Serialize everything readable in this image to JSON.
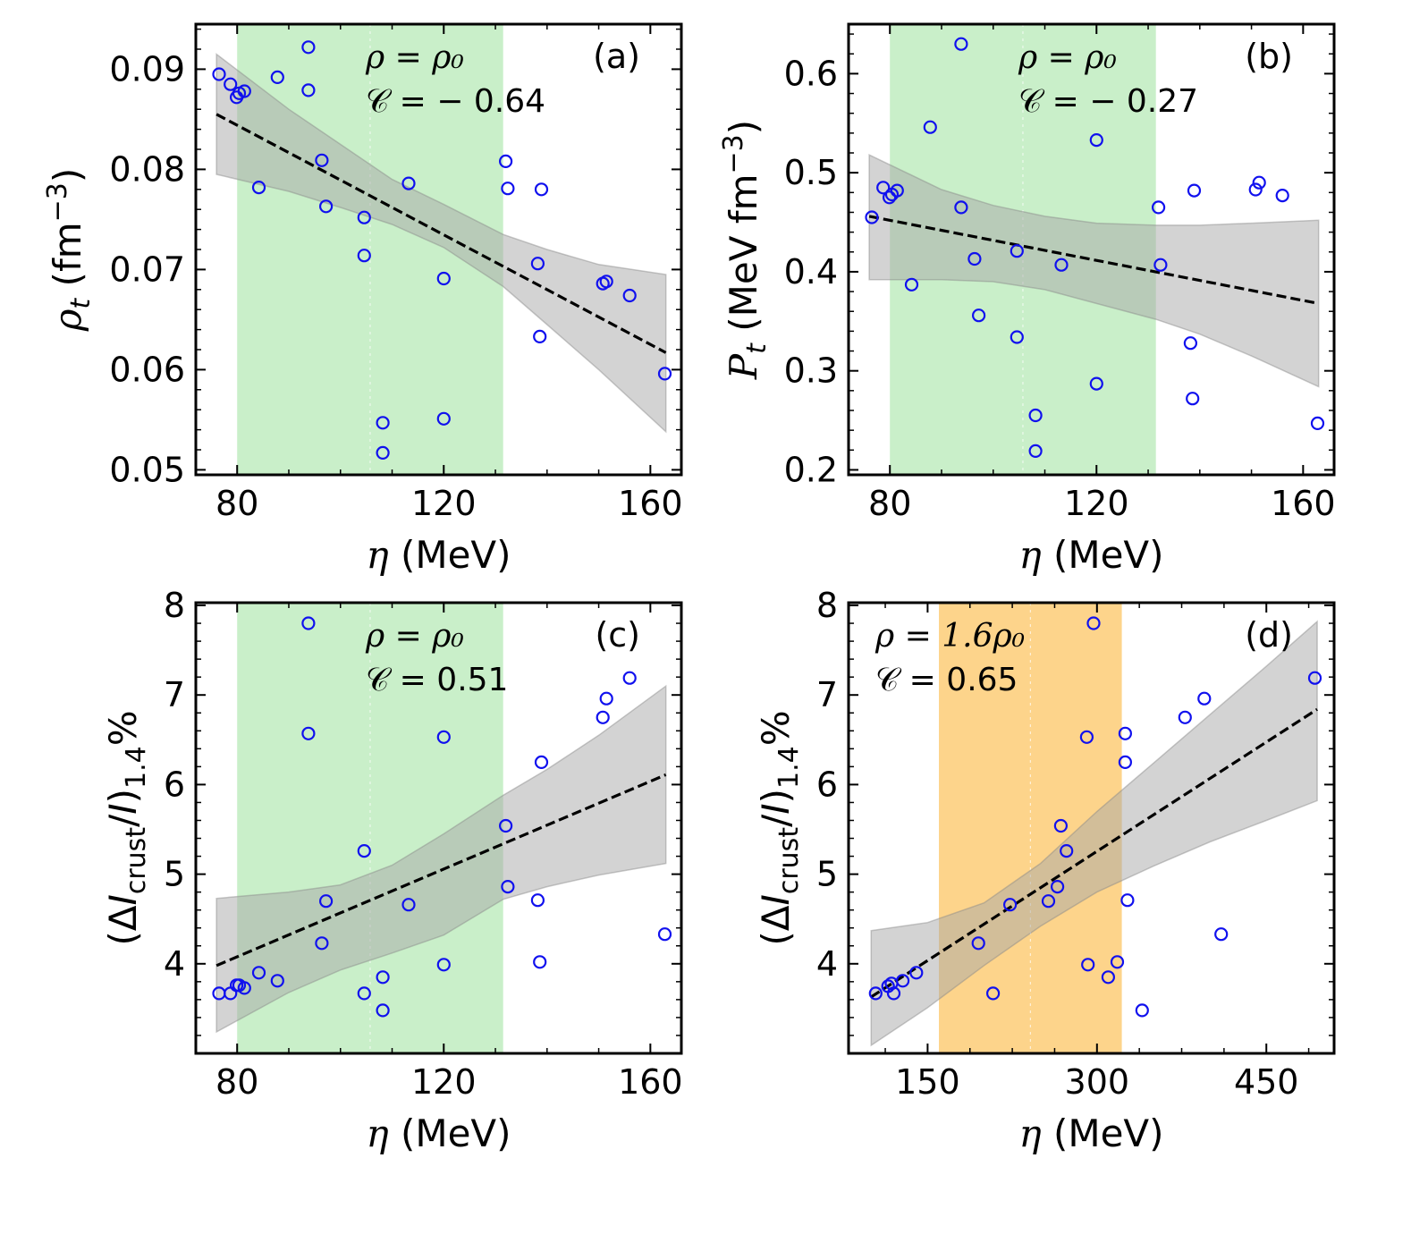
{
  "colors": {
    "green_band": "#c9efc9",
    "orange_band": "#fdd48b",
    "ci_band": "#a8a8a8",
    "points": "#1010ee",
    "fit_line": "#000000",
    "axis": "#000000"
  },
  "chart_data": [
    {
      "id": "a",
      "type": "scatter",
      "panel_label": "(a)",
      "annotation_density": "ρ = ρ₀",
      "annotation_corr": "𝒞 = − 0.64",
      "xlabel": "η (MeV)",
      "ylabel": "ρt (fm⁻³)",
      "ylabel_parts": {
        "sym": "ρ",
        "sub": "t",
        "unit": " (fm",
        "sup": "−3",
        "close": ")"
      },
      "xlim": [
        72,
        166
      ],
      "ylim": [
        0.0495,
        0.0945
      ],
      "xticks": [
        80,
        120,
        160
      ],
      "xtick_labels": [
        "80",
        "120",
        "160"
      ],
      "yticks": [
        0.05,
        0.06,
        0.07,
        0.08,
        0.09
      ],
      "ytick_labels": [
        "0.05",
        "0.06",
        "0.07",
        "0.08",
        "0.09"
      ],
      "band_range": [
        80,
        131.5
      ],
      "fit": {
        "x": [
          76,
          163
        ],
        "y": [
          0.0855,
          0.0617
        ]
      },
      "ci": {
        "x": [
          76,
          90,
          100,
          110,
          120,
          131.5,
          140,
          150,
          163
        ],
        "upper": [
          0.0915,
          0.086,
          0.0825,
          0.079,
          0.0765,
          0.0735,
          0.072,
          0.0705,
          0.0695
        ],
        "lower": [
          0.0795,
          0.0778,
          0.0762,
          0.0745,
          0.0722,
          0.0683,
          0.0645,
          0.06,
          0.0538
        ]
      },
      "points": [
        {
          "x": 76.5,
          "y": 0.0895
        },
        {
          "x": 78.7,
          "y": 0.0885
        },
        {
          "x": 79.9,
          "y": 0.0872
        },
        {
          "x": 80.4,
          "y": 0.0876
        },
        {
          "x": 81.4,
          "y": 0.0878
        },
        {
          "x": 84.2,
          "y": 0.0782
        },
        {
          "x": 87.8,
          "y": 0.0892
        },
        {
          "x": 93.8,
          "y": 0.0922
        },
        {
          "x": 93.8,
          "y": 0.0879
        },
        {
          "x": 96.4,
          "y": 0.0809
        },
        {
          "x": 97.2,
          "y": 0.0763
        },
        {
          "x": 104.6,
          "y": 0.0752
        },
        {
          "x": 104.6,
          "y": 0.0714
        },
        {
          "x": 108.2,
          "y": 0.0547
        },
        {
          "x": 108.2,
          "y": 0.0517
        },
        {
          "x": 113.2,
          "y": 0.0786
        },
        {
          "x": 120.0,
          "y": 0.0691
        },
        {
          "x": 120.0,
          "y": 0.0551
        },
        {
          "x": 132.0,
          "y": 0.0808
        },
        {
          "x": 132.4,
          "y": 0.0781
        },
        {
          "x": 138.2,
          "y": 0.0706
        },
        {
          "x": 138.6,
          "y": 0.0633
        },
        {
          "x": 138.9,
          "y": 0.078
        },
        {
          "x": 150.8,
          "y": 0.0686
        },
        {
          "x": 151.5,
          "y": 0.0688
        },
        {
          "x": 156.0,
          "y": 0.0674
        },
        {
          "x": 162.8,
          "y": 0.0596
        }
      ]
    },
    {
      "id": "b",
      "type": "scatter",
      "panel_label": "(b)",
      "annotation_density": "ρ = ρ₀",
      "annotation_corr": "𝒞 = − 0.27",
      "xlabel": "η (MeV)",
      "ylabel": "Pt (MeV fm⁻³)",
      "ylabel_parts": {
        "sym": "P",
        "sub": "t",
        "unit": " (MeV fm",
        "sup": "−3",
        "close": ")"
      },
      "xlim": [
        72,
        166
      ],
      "ylim": [
        0.195,
        0.65
      ],
      "xticks": [
        80,
        120,
        160
      ],
      "xtick_labels": [
        "80",
        "120",
        "160"
      ],
      "yticks": [
        0.2,
        0.3,
        0.4,
        0.5,
        0.6
      ],
      "ytick_labels": [
        "0.2",
        "0.3",
        "0.4",
        "0.5",
        "0.6"
      ],
      "band_range": [
        80,
        131.5
      ],
      "fit": {
        "x": [
          76,
          163
        ],
        "y": [
          0.456,
          0.368
        ]
      },
      "ci": {
        "x": [
          76,
          90,
          100,
          110,
          120,
          131.5,
          140,
          150,
          163
        ],
        "upper": [
          0.518,
          0.483,
          0.467,
          0.456,
          0.449,
          0.447,
          0.447,
          0.449,
          0.452
        ],
        "lower": [
          0.392,
          0.392,
          0.39,
          0.382,
          0.368,
          0.352,
          0.337,
          0.315,
          0.284
        ]
      },
      "points": [
        {
          "x": 76.5,
          "y": 0.455
        },
        {
          "x": 78.7,
          "y": 0.485
        },
        {
          "x": 79.9,
          "y": 0.475
        },
        {
          "x": 80.4,
          "y": 0.478
        },
        {
          "x": 81.4,
          "y": 0.482
        },
        {
          "x": 84.2,
          "y": 0.387
        },
        {
          "x": 87.8,
          "y": 0.546
        },
        {
          "x": 93.8,
          "y": 0.63
        },
        {
          "x": 93.8,
          "y": 0.465
        },
        {
          "x": 96.4,
          "y": 0.413
        },
        {
          "x": 97.2,
          "y": 0.356
        },
        {
          "x": 104.6,
          "y": 0.421
        },
        {
          "x": 104.6,
          "y": 0.334
        },
        {
          "x": 108.2,
          "y": 0.255
        },
        {
          "x": 108.2,
          "y": 0.219
        },
        {
          "x": 113.2,
          "y": 0.407
        },
        {
          "x": 120.0,
          "y": 0.533
        },
        {
          "x": 120.0,
          "y": 0.287
        },
        {
          "x": 132.0,
          "y": 0.465
        },
        {
          "x": 132.4,
          "y": 0.407
        },
        {
          "x": 138.2,
          "y": 0.328
        },
        {
          "x": 138.6,
          "y": 0.272
        },
        {
          "x": 138.9,
          "y": 0.482
        },
        {
          "x": 150.8,
          "y": 0.483
        },
        {
          "x": 151.5,
          "y": 0.49
        },
        {
          "x": 156.0,
          "y": 0.477
        },
        {
          "x": 162.8,
          "y": 0.247
        }
      ]
    },
    {
      "id": "c",
      "type": "scatter",
      "panel_label": "(c)",
      "annotation_density": "ρ = ρ₀",
      "annotation_corr": "𝒞 = 0.51",
      "xlabel": "η (MeV)",
      "ylabel": "(ΔIcrust/I)1.4%",
      "ylabel_parts": {
        "open": "(Δ",
        "sym": "I",
        "sub": "crust",
        "mid": "/",
        "sym2": "I",
        "close": ")",
        "sub2": "1.4",
        "tail": "%"
      },
      "xlim": [
        72,
        166
      ],
      "ylim": [
        3.0,
        8.03
      ],
      "xticks": [
        80,
        120,
        160
      ],
      "xtick_labels": [
        "80",
        "120",
        "160"
      ],
      "yticks": [
        4,
        5,
        6,
        7,
        8
      ],
      "ytick_labels": [
        "4",
        "5",
        "6",
        "7",
        "8"
      ],
      "band_range": [
        80,
        131.5
      ],
      "fit": {
        "x": [
          76,
          163
        ],
        "y": [
          3.98,
          6.11
        ]
      },
      "ci": {
        "x": [
          76,
          90,
          100,
          110,
          120,
          131.5,
          140,
          150,
          163
        ],
        "upper": [
          4.73,
          4.8,
          4.88,
          5.1,
          5.45,
          5.88,
          6.17,
          6.55,
          7.1
        ],
        "lower": [
          3.24,
          3.68,
          3.93,
          4.12,
          4.32,
          4.72,
          4.86,
          4.99,
          5.12
        ]
      },
      "points": [
        {
          "x": 76.5,
          "y": 3.67
        },
        {
          "x": 78.7,
          "y": 3.67
        },
        {
          "x": 79.9,
          "y": 3.76
        },
        {
          "x": 80.4,
          "y": 3.76
        },
        {
          "x": 81.4,
          "y": 3.73
        },
        {
          "x": 84.2,
          "y": 3.9
        },
        {
          "x": 87.8,
          "y": 3.81
        },
        {
          "x": 93.8,
          "y": 7.8
        },
        {
          "x": 93.8,
          "y": 6.57
        },
        {
          "x": 96.4,
          "y": 4.23
        },
        {
          "x": 97.2,
          "y": 4.7
        },
        {
          "x": 104.6,
          "y": 5.26
        },
        {
          "x": 104.6,
          "y": 3.67
        },
        {
          "x": 108.2,
          "y": 3.85
        },
        {
          "x": 108.2,
          "y": 3.48
        },
        {
          "x": 113.2,
          "y": 4.66
        },
        {
          "x": 120.0,
          "y": 6.53
        },
        {
          "x": 120.0,
          "y": 3.99
        },
        {
          "x": 132.0,
          "y": 5.54
        },
        {
          "x": 132.4,
          "y": 4.86
        },
        {
          "x": 138.2,
          "y": 4.71
        },
        {
          "x": 138.6,
          "y": 4.02
        },
        {
          "x": 138.9,
          "y": 6.25
        },
        {
          "x": 150.8,
          "y": 6.75
        },
        {
          "x": 151.5,
          "y": 6.96
        },
        {
          "x": 156.0,
          "y": 7.19
        },
        {
          "x": 162.8,
          "y": 4.33
        }
      ]
    },
    {
      "id": "d",
      "type": "scatter",
      "panel_label": "(d)",
      "annotation_density": "ρ = 1.6ρ₀",
      "annotation_corr": "𝒞 = 0.65",
      "xlabel": "η (MeV)",
      "ylabel": "(ΔIcrust/I)1.4%",
      "ylabel_parts": {
        "open": "(Δ",
        "sym": "I",
        "sub": "crust",
        "mid": "/",
        "sym2": "I",
        "close": ")",
        "sub2": "1.4",
        "tail": "%"
      },
      "xlim": [
        80,
        510
      ],
      "ylim": [
        3.0,
        8.03
      ],
      "xticks": [
        150,
        300,
        450
      ],
      "xtick_labels": [
        "150",
        "300",
        "450"
      ],
      "yticks": [
        4,
        5,
        6,
        7,
        8
      ],
      "ytick_labels": [
        "4",
        "5",
        "6",
        "7",
        "8"
      ],
      "band_range": [
        160,
        322
      ],
      "fit": {
        "x": [
          100,
          495
        ],
        "y": [
          3.63,
          6.84
        ]
      },
      "ci": {
        "x": [
          100,
          150,
          200,
          250,
          300,
          350,
          400,
          450,
          495
        ],
        "upper": [
          4.37,
          4.46,
          4.68,
          5.12,
          5.7,
          6.24,
          6.78,
          7.32,
          7.82
        ],
        "lower": [
          3.09,
          3.51,
          3.98,
          4.42,
          4.8,
          5.09,
          5.36,
          5.6,
          5.82
        ]
      },
      "points": [
        {
          "x": 104,
          "y": 3.67
        },
        {
          "x": 115,
          "y": 3.75
        },
        {
          "x": 118,
          "y": 3.78
        },
        {
          "x": 120,
          "y": 3.67
        },
        {
          "x": 128,
          "y": 3.81
        },
        {
          "x": 140,
          "y": 3.9
        },
        {
          "x": 195,
          "y": 4.23
        },
        {
          "x": 208,
          "y": 3.67
        },
        {
          "x": 223,
          "y": 4.66
        },
        {
          "x": 257,
          "y": 4.7
        },
        {
          "x": 265,
          "y": 4.86
        },
        {
          "x": 268,
          "y": 5.54
        },
        {
          "x": 273,
          "y": 5.26
        },
        {
          "x": 291,
          "y": 6.53
        },
        {
          "x": 292,
          "y": 3.99
        },
        {
          "x": 297,
          "y": 7.8
        },
        {
          "x": 310,
          "y": 3.85
        },
        {
          "x": 318,
          "y": 4.02
        },
        {
          "x": 325,
          "y": 6.57
        },
        {
          "x": 325,
          "y": 6.25
        },
        {
          "x": 327,
          "y": 4.71
        },
        {
          "x": 340,
          "y": 3.48
        },
        {
          "x": 378,
          "y": 6.75
        },
        {
          "x": 395,
          "y": 6.96
        },
        {
          "x": 410,
          "y": 4.33
        },
        {
          "x": 493,
          "y": 7.19
        }
      ]
    }
  ]
}
